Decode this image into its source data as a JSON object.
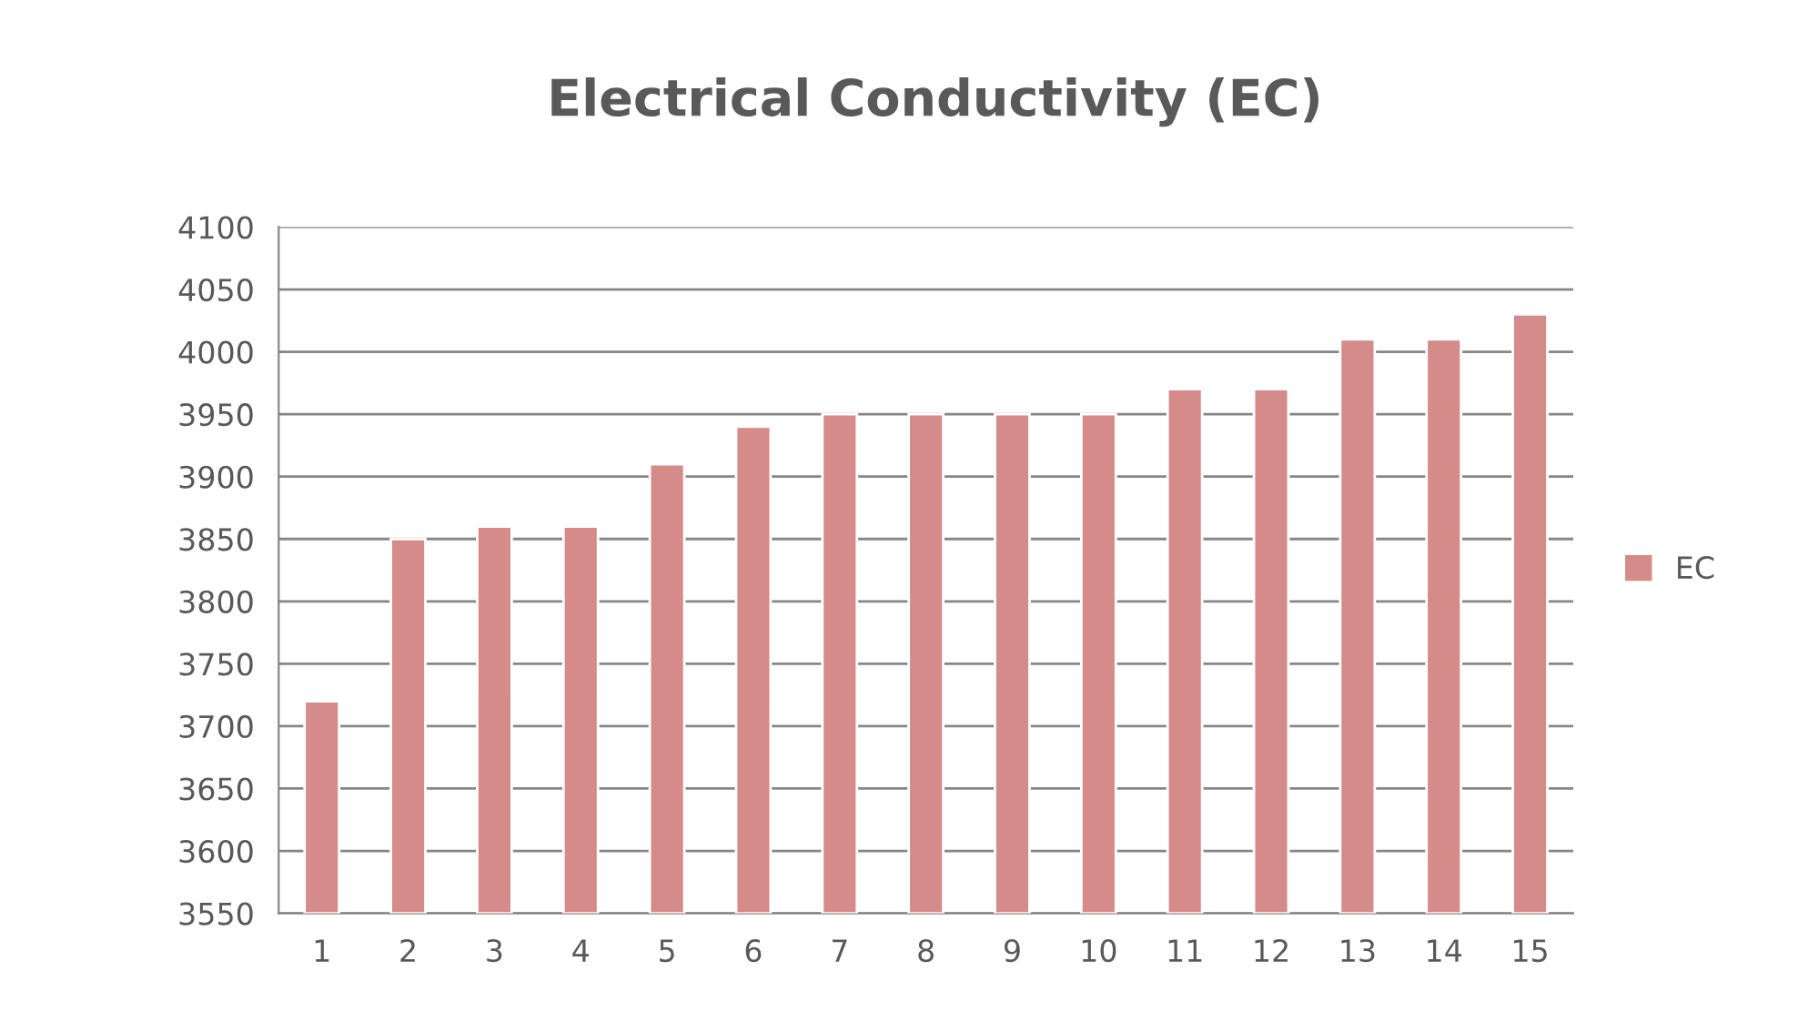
{
  "chart_data": {
    "type": "bar",
    "title": "Electrical Conductivity (EC)",
    "categories": [
      "1",
      "2",
      "3",
      "4",
      "5",
      "6",
      "7",
      "8",
      "9",
      "10",
      "11",
      "12",
      "13",
      "14",
      "15"
    ],
    "series": [
      {
        "name": "EC",
        "color": "#d58b8a",
        "values": [
          3720,
          3850,
          3860,
          3860,
          3910,
          3940,
          3950,
          3950,
          3950,
          3950,
          3970,
          3970,
          4010,
          4010,
          4030
        ]
      }
    ],
    "ylim": [
      3550,
      4100
    ],
    "yticks": [
      3550,
      3600,
      3650,
      3700,
      3750,
      3800,
      3850,
      3900,
      3950,
      4000,
      4050,
      4100
    ],
    "grid": "y",
    "legend": "right"
  }
}
